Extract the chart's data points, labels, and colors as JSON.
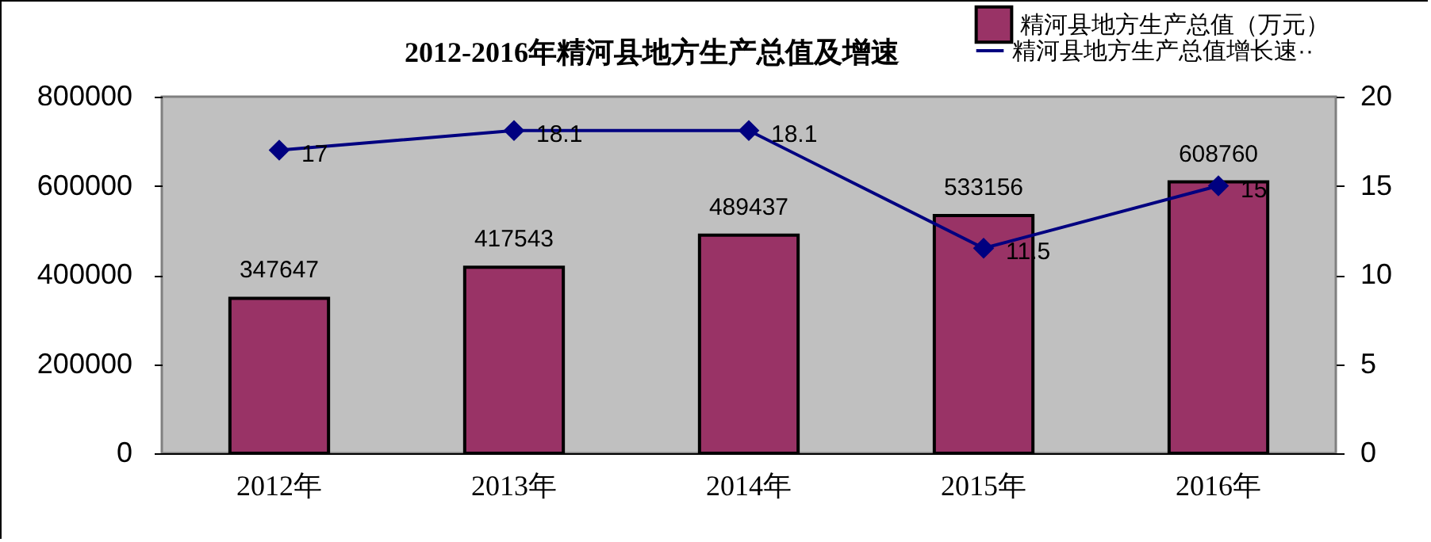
{
  "chart_data": {
    "type": "bar",
    "title": "2012-2016年精河县地方生产总值及增速",
    "categories": [
      "2012年",
      "2013年",
      "2014年",
      "2015年",
      "2016年"
    ],
    "series": [
      {
        "name": "精河县地方生产总值（万元）",
        "color": "#993366",
        "values": [
          347647,
          417543,
          489437,
          533156,
          608760
        ]
      },
      {
        "name": "精河县地方生产总值增长速··",
        "color": "#000080",
        "type": "line",
        "axis": "y2",
        "values": [
          17,
          18.1,
          18.1,
          11.5,
          15
        ]
      }
    ],
    "ylim": [
      0,
      800000
    ],
    "yticks": [
      0,
      200000,
      400000,
      600000,
      800000
    ],
    "y2lim": [
      0,
      20
    ],
    "y2ticks": [
      0,
      5,
      10,
      15,
      20
    ],
    "data_labels": true,
    "legend": "top right",
    "marker": "diamond"
  }
}
